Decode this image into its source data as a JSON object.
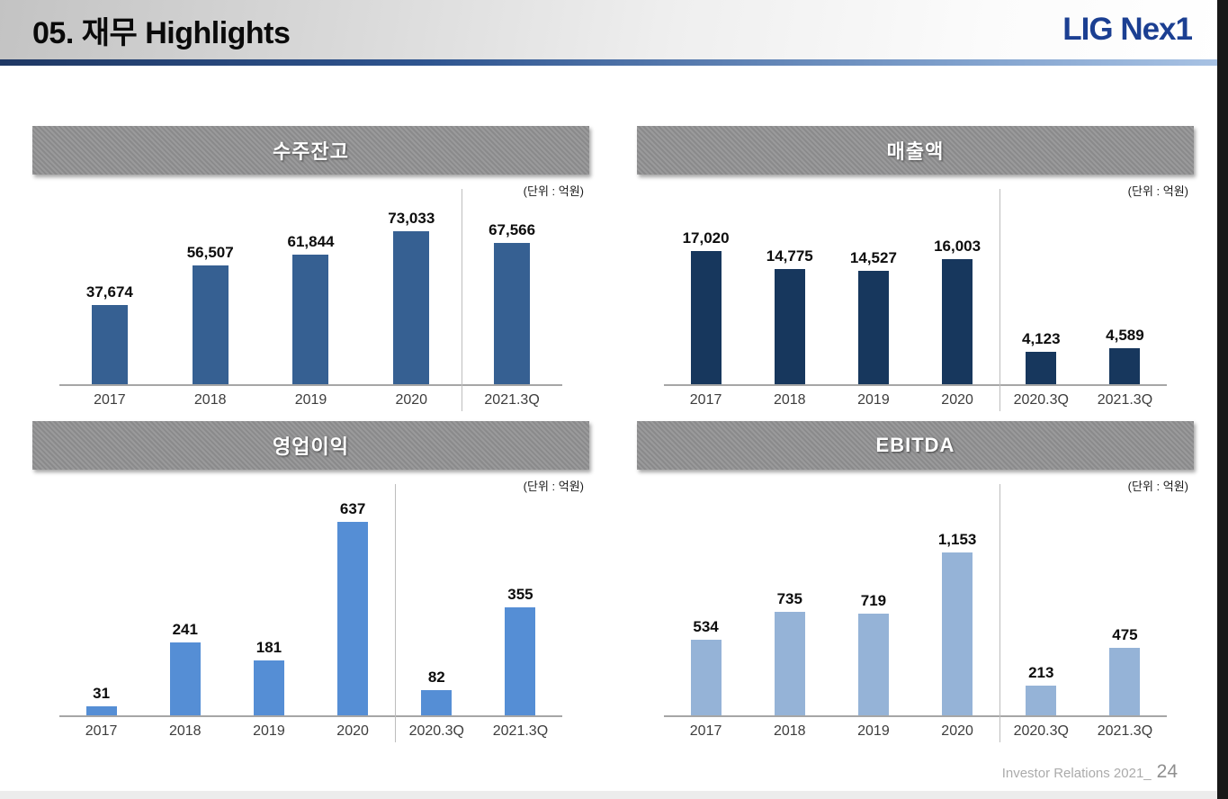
{
  "header": {
    "title": "05. 재무 Highlights",
    "logo": "LIG Nex1"
  },
  "footer": {
    "text": "Investor Relations 2021_",
    "page_number": "24"
  },
  "colors": {
    "logo_blue": "#1b3f92",
    "accent_line_dark": "#1f3864",
    "accent_line_light": "#a9c3e4",
    "backlog_bar": "#366092",
    "revenue_bar": "#17375d",
    "operating_profit_bar": "#558ed5",
    "ebitda_bar": "#95b3d7",
    "title_bar_gray": "#8f8f8f",
    "axis_gray": "#a6a6a6"
  },
  "chart_data": [
    {
      "type": "bar",
      "title": "수주잔고",
      "unit": "(단위 : 억원)",
      "categories": [
        "2017",
        "2018",
        "2019",
        "2020",
        "2021.3Q"
      ],
      "values": [
        37674,
        56507,
        61844,
        73033,
        67566
      ],
      "value_labels": [
        "37,674",
        "56,507",
        "61,844",
        "73,033",
        "67,566"
      ],
      "bar_color": "#366092",
      "separator_after_index": 3,
      "ylim": [
        0,
        73033
      ],
      "grid": "off",
      "legend": "none"
    },
    {
      "type": "bar",
      "title": "매출액",
      "unit": "(단위 : 억원)",
      "categories": [
        "2017",
        "2018",
        "2019",
        "2020",
        "2020.3Q",
        "2021.3Q"
      ],
      "values": [
        17020,
        14775,
        14527,
        16003,
        4123,
        4589
      ],
      "value_labels": [
        "17,020",
        "14,775",
        "14,527",
        "16,003",
        "4,123",
        "4,589"
      ],
      "bar_color": "#17375d",
      "separator_after_index": 3,
      "ylim": [
        0,
        17020
      ],
      "grid": "off",
      "legend": "none"
    },
    {
      "type": "bar",
      "title": "영업이익",
      "unit": "(단위 : 억원)",
      "categories": [
        "2017",
        "2018",
        "2019",
        "2020",
        "2020.3Q",
        "2021.3Q"
      ],
      "values": [
        31,
        241,
        181,
        637,
        82,
        355
      ],
      "value_labels": [
        "31",
        "241",
        "181",
        "637",
        "82",
        "355"
      ],
      "bar_color": "#558ed5",
      "separator_after_index": 3,
      "ylim": [
        0,
        637
      ],
      "grid": "off",
      "legend": "none"
    },
    {
      "type": "bar",
      "title": "EBITDA",
      "unit": "(단위 : 억원)",
      "categories": [
        "2017",
        "2018",
        "2019",
        "2020",
        "2020.3Q",
        "2021.3Q"
      ],
      "values": [
        534,
        735,
        719,
        1153,
        213,
        475
      ],
      "value_labels": [
        "534",
        "735",
        "719",
        "1,153",
        "213",
        "475"
      ],
      "bar_color": "#95b3d7",
      "separator_after_index": 3,
      "ylim": [
        0,
        1153
      ],
      "grid": "off",
      "legend": "none"
    }
  ]
}
